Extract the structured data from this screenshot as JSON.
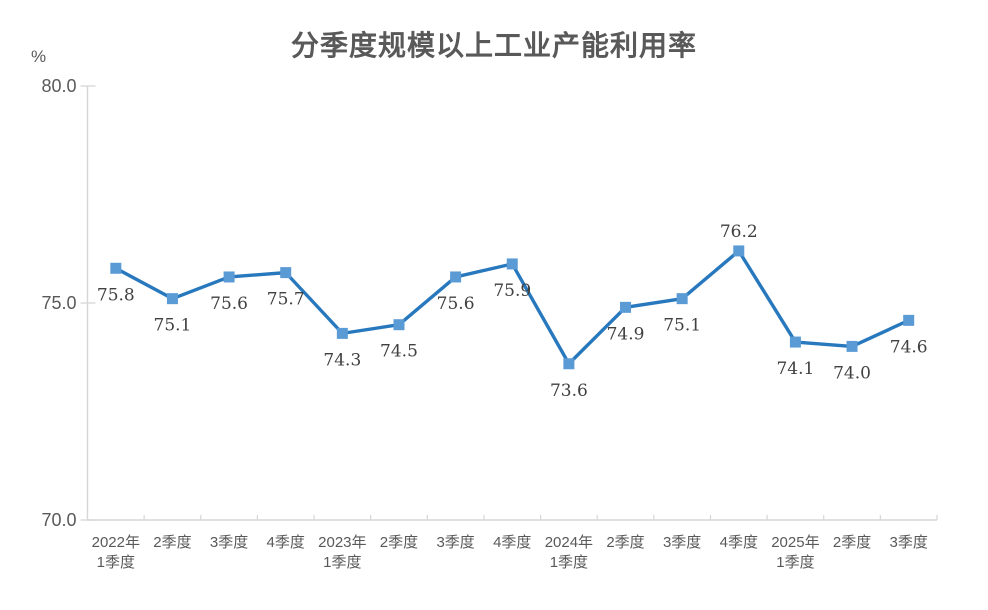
{
  "chart_data": {
    "type": "line",
    "title": "分季度规模以上工业产能利用率",
    "unit_label": "%",
    "categories": [
      [
        "2022年",
        "1季度"
      ],
      [
        "2季度"
      ],
      [
        "3季度"
      ],
      [
        "4季度"
      ],
      [
        "2023年",
        "1季度"
      ],
      [
        "2季度"
      ],
      [
        "3季度"
      ],
      [
        "4季度"
      ],
      [
        "2024年",
        "1季度"
      ],
      [
        "2季度"
      ],
      [
        "3季度"
      ],
      [
        "4季度"
      ],
      [
        "2025年",
        "1季度"
      ],
      [
        "2季度"
      ],
      [
        "3季度"
      ]
    ],
    "values": [
      75.8,
      75.1,
      75.6,
      75.7,
      74.3,
      74.5,
      75.6,
      75.9,
      73.6,
      74.9,
      75.1,
      76.2,
      74.1,
      74.0,
      74.6
    ],
    "point_labels": [
      "75.8",
      "75.1",
      "75.6",
      "75.7",
      "74.3",
      "74.5",
      "75.6",
      "75.9",
      "73.6",
      "74.9",
      "75.1",
      "76.2",
      "74.1",
      "74.0",
      "74.6"
    ],
    "label_placement": [
      "below",
      "below",
      "below",
      "below",
      "below",
      "below",
      "below",
      "below",
      "below",
      "below",
      "below",
      "above",
      "below",
      "below",
      "below"
    ],
    "ylim": [
      70.0,
      80.0
    ],
    "yticks": [
      80.0,
      75.0,
      70.0
    ],
    "ytick_labels": [
      "80.0",
      "75.0",
      "70.0"
    ],
    "grid": false,
    "legend": "none",
    "colors": {
      "line": "#2878BE",
      "marker": "#5B9BD5",
      "axis": "#D6D6D6",
      "tick_text": "#595959",
      "title_text": "#595959",
      "data_label_text": "#404040",
      "background": "#FFFFFF"
    }
  }
}
